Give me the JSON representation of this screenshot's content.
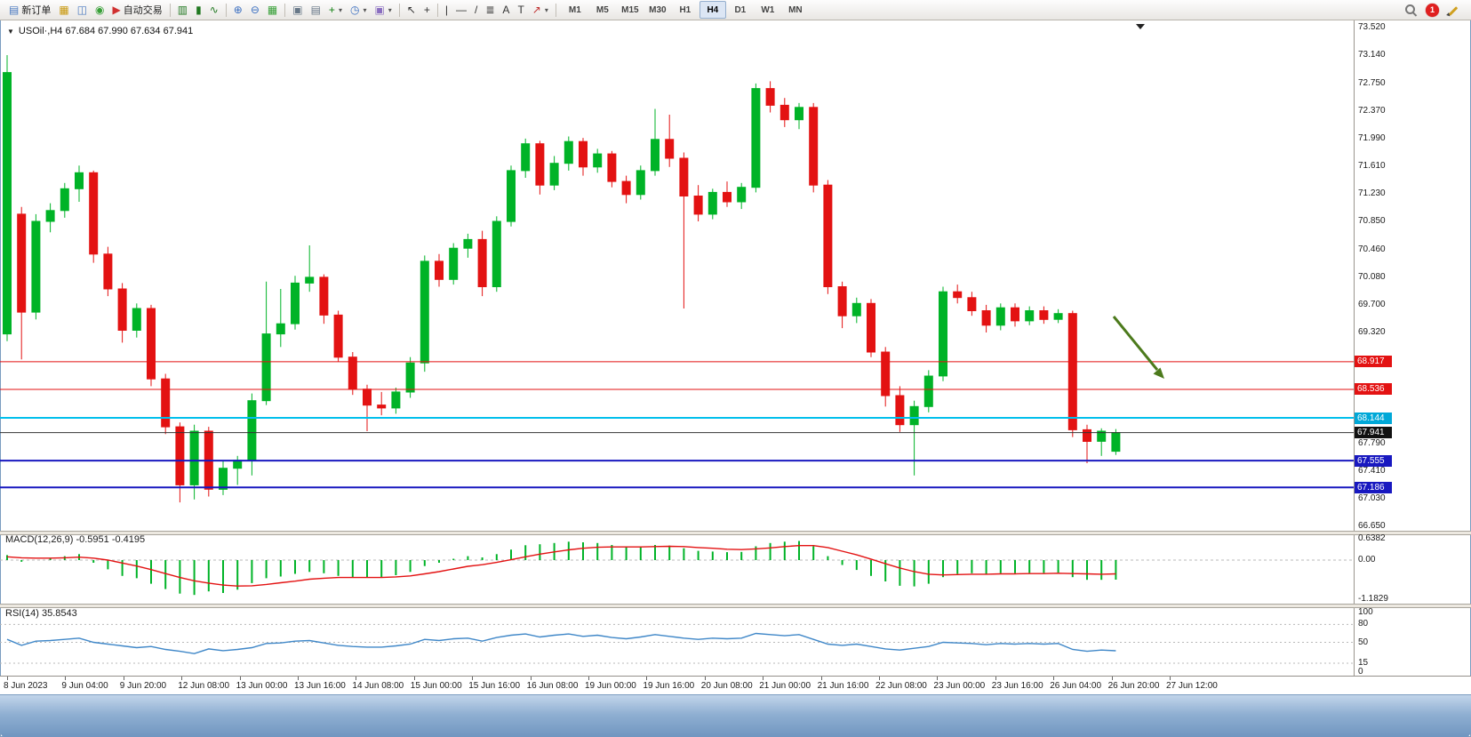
{
  "toolbar": {
    "notification_count": "1",
    "active_timeframe": "H4",
    "timeframes": [
      "M1",
      "M5",
      "M15",
      "M30",
      "H1",
      "H4",
      "D1",
      "W1",
      "MN"
    ],
    "items": [
      {
        "name": "new-order-button",
        "icon": "new-order-icon",
        "glyph": "▤",
        "color": "#4878c0",
        "label": "新订单"
      },
      {
        "name": "charts-button",
        "icon": "chart-window-icon",
        "glyph": "▦",
        "color": "#c8980e"
      },
      {
        "name": "profiles-button",
        "icon": "profiles-icon",
        "glyph": "◫",
        "color": "#4878c0"
      },
      {
        "name": "refresh-button",
        "icon": "refresh-icon",
        "glyph": "◉",
        "color": "#38a038"
      },
      {
        "name": "autotrading-button",
        "icon": "autotrading-icon",
        "glyph": "▶",
        "color": "#d03030",
        "label": "自动交易"
      },
      {
        "sep": true
      },
      {
        "name": "bar-chart-button",
        "icon": "ohlc-bars-icon",
        "glyph": "▥",
        "color": "#207820"
      },
      {
        "name": "candlestick-chart-button",
        "icon": "candlestick-icon",
        "glyph": "▮",
        "color": "#207820"
      },
      {
        "name": "line-chart-button",
        "icon": "line-chart-icon",
        "glyph": "∿",
        "color": "#207820"
      },
      {
        "sep": true
      },
      {
        "name": "zoom-in-button",
        "icon": "zoom-in-icon",
        "glyph": "⊕",
        "color": "#3a6ec0"
      },
      {
        "name": "zoom-out-button",
        "icon": "zoom-out-icon",
        "glyph": "⊖",
        "color": "#3a6ec0"
      },
      {
        "name": "tile-windows-button",
        "icon": "tile-windows-icon",
        "glyph": "▦",
        "color": "#38a038"
      },
      {
        "sep": true
      },
      {
        "name": "auto-arrange-button",
        "icon": "arrange-icon",
        "glyph": "▣",
        "color": "#687888"
      },
      {
        "name": "chart-shift-button",
        "icon": "chart-shift-icon",
        "glyph": "▤",
        "color": "#687888"
      },
      {
        "name": "indicators-button",
        "icon": "add-indicator-icon",
        "glyph": "+",
        "color": "#108010",
        "dropdown": true
      },
      {
        "name": "periods-button",
        "icon": "clock-icon",
        "glyph": "◷",
        "color": "#3a6ec0",
        "dropdown": true
      },
      {
        "name": "templates-button",
        "icon": "template-icon",
        "glyph": "▣",
        "color": "#8a6ec0",
        "dropdown": true
      },
      {
        "sep": true
      },
      {
        "name": "cursor-button",
        "icon": "cursor-icon",
        "glyph": "↖",
        "color": "#333333"
      },
      {
        "name": "crosshair-button",
        "icon": "crosshair-icon",
        "glyph": "+",
        "color": "#333333"
      },
      {
        "sep": true
      },
      {
        "name": "vertical-line-button",
        "icon": "vertical-line-icon",
        "glyph": "|",
        "color": "#333333"
      },
      {
        "name": "horizontal-line-button",
        "icon": "horizontal-line-icon",
        "glyph": "—",
        "color": "#333333"
      },
      {
        "name": "trendline-button",
        "icon": "trendline-icon",
        "glyph": "/",
        "color": "#333333"
      },
      {
        "name": "fibonacci-button",
        "icon": "fibonacci-icon",
        "glyph": "≣",
        "color": "#333333"
      },
      {
        "name": "text-button",
        "icon": "text-icon",
        "glyph": "A",
        "color": "#333333"
      },
      {
        "name": "text-label-button",
        "icon": "text-label-icon",
        "glyph": "T",
        "color": "#333333"
      },
      {
        "name": "shapes-button",
        "icon": "arrow-shapes-icon",
        "glyph": "↗",
        "color": "#c03030",
        "dropdown": true
      },
      {
        "sep": true
      }
    ]
  },
  "chart_header": {
    "title": "USOil·,H4  67.684 67.990 67.634 67.941"
  },
  "panels": {
    "macd_label": "MACD(12,26,9) -0.5951 -0.4195",
    "rsi_label": "RSI(14) 35.8543"
  },
  "colors": {
    "up": "#00b327",
    "down": "#e31212",
    "macd_hist": "#00b327",
    "macd_signal": "#e31212",
    "rsi_line": "#3f87c8",
    "arrow": "#4c7a1c",
    "grid_dash": "#b8b8b8"
  },
  "chart_data": {
    "type": "candlestick",
    "symbol": "USOil",
    "timeframe": "H4",
    "last_ohlc": {
      "open": 67.684,
      "high": 67.99,
      "low": 67.634,
      "close": 67.941
    },
    "y_range": [
      66.65,
      73.52
    ],
    "price_axis_ticks": [
      73.52,
      73.14,
      72.75,
      72.37,
      71.99,
      71.61,
      71.23,
      70.85,
      70.46,
      70.08,
      69.7,
      69.32,
      67.79,
      67.41,
      67.03,
      66.65
    ],
    "price_tags": [
      {
        "price": 68.917,
        "bg": "#e31212"
      },
      {
        "price": 68.536,
        "bg": "#e31212"
      },
      {
        "price": 68.144,
        "bg": "#00a8d8"
      },
      {
        "price": 67.941,
        "bg": "#111111"
      },
      {
        "price": 67.555,
        "bg": "#1818c0"
      },
      {
        "price": 67.186,
        "bg": "#1818c0"
      }
    ],
    "horizontal_lines": [
      {
        "price": 68.917,
        "color": "#e31212",
        "width": 1
      },
      {
        "price": 68.536,
        "color": "#e31212",
        "width": 1
      },
      {
        "price": 68.144,
        "color": "#00bfec",
        "width": 2
      },
      {
        "price": 67.555,
        "color": "#1818c0",
        "width": 2
      },
      {
        "price": 67.186,
        "color": "#1818c0",
        "width": 2
      }
    ],
    "current_price_line": {
      "price": 67.941,
      "color": "#333333"
    },
    "annotation_arrow": {
      "color": "#4c7a1c"
    },
    "time_labels": [
      "8 Jun 2023",
      "9 Jun 04:00",
      "9 Jun 20:00",
      "12 Jun 08:00",
      "13 Jun 00:00",
      "13 Jun 16:00",
      "14 Jun 08:00",
      "15 Jun 00:00",
      "15 Jun 16:00",
      "16 Jun 08:00",
      "19 Jun 00:00",
      "19 Jun 16:00",
      "20 Jun 08:00",
      "21 Jun 00:00",
      "21 Jun 16:00",
      "22 Jun 08:00",
      "23 Jun 00:00",
      "23 Jun 16:00",
      "26 Jun 04:00",
      "26 Jun 20:00",
      "27 Jun 12:00"
    ],
    "candles": [
      [
        69.3,
        73.14,
        69.2,
        72.9
      ],
      [
        70.95,
        71.05,
        68.95,
        69.6
      ],
      [
        69.6,
        70.95,
        69.5,
        70.85
      ],
      [
        70.85,
        71.1,
        70.7,
        71.0
      ],
      [
        71.0,
        71.38,
        70.9,
        71.3
      ],
      [
        71.3,
        71.62,
        71.12,
        71.52
      ],
      [
        71.52,
        71.55,
        70.28,
        70.4
      ],
      [
        70.4,
        70.5,
        69.82,
        69.92
      ],
      [
        69.92,
        70.0,
        69.18,
        69.35
      ],
      [
        69.35,
        69.72,
        69.25,
        69.65
      ],
      [
        69.65,
        69.7,
        68.58,
        68.68
      ],
      [
        68.68,
        68.75,
        67.92,
        68.02
      ],
      [
        68.02,
        68.08,
        66.98,
        67.22
      ],
      [
        67.22,
        68.05,
        67.02,
        67.96
      ],
      [
        67.96,
        68.02,
        67.06,
        67.16
      ],
      [
        67.16,
        67.55,
        67.08,
        67.45
      ],
      [
        67.45,
        67.62,
        67.22,
        67.56
      ],
      [
        67.56,
        68.48,
        67.35,
        68.38
      ],
      [
        68.38,
        70.02,
        68.32,
        69.3
      ],
      [
        69.3,
        69.92,
        69.12,
        69.44
      ],
      [
        69.44,
        70.1,
        69.36,
        70.0
      ],
      [
        70.0,
        70.52,
        69.88,
        70.08
      ],
      [
        70.08,
        70.12,
        69.44,
        69.56
      ],
      [
        69.56,
        69.62,
        68.92,
        68.98
      ],
      [
        68.98,
        69.05,
        68.46,
        68.54
      ],
      [
        68.54,
        68.6,
        67.96,
        68.32
      ],
      [
        68.32,
        68.5,
        68.18,
        68.28
      ],
      [
        68.28,
        68.56,
        68.2,
        68.5
      ],
      [
        68.5,
        68.98,
        68.42,
        68.9
      ],
      [
        68.9,
        70.38,
        68.78,
        70.3
      ],
      [
        70.3,
        70.4,
        69.95,
        70.05
      ],
      [
        70.05,
        70.55,
        69.98,
        70.48
      ],
      [
        70.48,
        70.68,
        70.35,
        70.6
      ],
      [
        70.6,
        70.72,
        69.82,
        69.95
      ],
      [
        69.95,
        70.92,
        69.88,
        70.85
      ],
      [
        70.85,
        71.62,
        70.78,
        71.55
      ],
      [
        71.55,
        71.99,
        71.45,
        71.92
      ],
      [
        71.92,
        71.96,
        71.22,
        71.35
      ],
      [
        71.35,
        71.75,
        71.28,
        71.65
      ],
      [
        71.65,
        72.02,
        71.55,
        71.95
      ],
      [
        71.95,
        72.0,
        71.48,
        71.6
      ],
      [
        71.6,
        71.85,
        71.52,
        71.78
      ],
      [
        71.78,
        71.82,
        71.32,
        71.4
      ],
      [
        71.4,
        71.48,
        71.1,
        71.22
      ],
      [
        71.22,
        71.62,
        71.15,
        71.55
      ],
      [
        71.55,
        72.4,
        71.48,
        71.98
      ],
      [
        71.98,
        72.32,
        71.6,
        71.72
      ],
      [
        71.72,
        71.8,
        69.65,
        71.2
      ],
      [
        71.2,
        71.35,
        70.85,
        70.95
      ],
      [
        70.95,
        71.3,
        70.88,
        71.25
      ],
      [
        71.25,
        71.4,
        71.05,
        71.12
      ],
      [
        71.12,
        71.38,
        71.02,
        71.32
      ],
      [
        71.32,
        72.75,
        71.25,
        72.68
      ],
      [
        72.68,
        72.78,
        72.35,
        72.45
      ],
      [
        72.45,
        72.55,
        72.15,
        72.25
      ],
      [
        72.25,
        72.48,
        72.12,
        72.42
      ],
      [
        72.42,
        72.48,
        71.25,
        71.35
      ],
      [
        71.35,
        71.42,
        69.85,
        69.95
      ],
      [
        69.95,
        70.02,
        69.38,
        69.55
      ],
      [
        69.55,
        69.8,
        69.45,
        69.72
      ],
      [
        69.72,
        69.78,
        68.98,
        69.05
      ],
      [
        69.05,
        69.12,
        68.3,
        68.45
      ],
      [
        68.45,
        68.58,
        67.95,
        68.05
      ],
      [
        68.05,
        68.38,
        67.35,
        68.3
      ],
      [
        68.3,
        68.8,
        68.22,
        68.72
      ],
      [
        68.72,
        69.95,
        68.65,
        69.88
      ],
      [
        69.88,
        69.98,
        69.72,
        69.8
      ],
      [
        69.8,
        69.88,
        69.55,
        69.62
      ],
      [
        69.62,
        69.7,
        69.32,
        69.42
      ],
      [
        69.42,
        69.72,
        69.35,
        69.66
      ],
      [
        69.66,
        69.72,
        69.4,
        69.48
      ],
      [
        69.48,
        69.68,
        69.42,
        69.62
      ],
      [
        69.62,
        69.68,
        69.44,
        69.5
      ],
      [
        69.5,
        69.64,
        69.45,
        69.58
      ],
      [
        69.58,
        69.62,
        67.88,
        67.98
      ],
      [
        67.98,
        68.05,
        67.52,
        67.82
      ],
      [
        67.82,
        68.0,
        67.62,
        67.96
      ],
      [
        67.684,
        67.99,
        67.634,
        67.941
      ]
    ],
    "macd": {
      "params": "12,26,9",
      "value": -0.5951,
      "signal_value": -0.4195,
      "axis_ticks": [
        "0.6382",
        "0.00",
        "-1.1829"
      ],
      "histogram": [
        0.15,
        -0.05,
        0.0,
        0.06,
        0.12,
        0.18,
        -0.08,
        -0.28,
        -0.48,
        -0.55,
        -0.72,
        -0.88,
        -1.02,
        -1.06,
        -0.95,
        -1.0,
        -0.9,
        -0.7,
        -0.55,
        -0.5,
        -0.42,
        -0.36,
        -0.4,
        -0.48,
        -0.52,
        -0.54,
        -0.52,
        -0.46,
        -0.36,
        -0.18,
        -0.08,
        0.04,
        0.12,
        0.08,
        0.18,
        0.32,
        0.45,
        0.48,
        0.52,
        0.56,
        0.54,
        0.52,
        0.46,
        0.4,
        0.4,
        0.46,
        0.44,
        0.36,
        0.28,
        0.26,
        0.24,
        0.25,
        0.42,
        0.52,
        0.56,
        0.58,
        0.42,
        0.12,
        -0.15,
        -0.3,
        -0.48,
        -0.65,
        -0.78,
        -0.8,
        -0.72,
        -0.52,
        -0.42,
        -0.4,
        -0.42,
        -0.4,
        -0.4,
        -0.39,
        -0.39,
        -0.38,
        -0.52,
        -0.6,
        -0.6,
        -0.5951
      ],
      "signal": [
        0.1,
        0.07,
        0.06,
        0.06,
        0.07,
        0.09,
        0.06,
        0.0,
        -0.09,
        -0.18,
        -0.29,
        -0.41,
        -0.53,
        -0.63,
        -0.7,
        -0.76,
        -0.79,
        -0.78,
        -0.74,
        -0.69,
        -0.64,
        -0.58,
        -0.55,
        -0.53,
        -0.53,
        -0.53,
        -0.53,
        -0.51,
        -0.48,
        -0.42,
        -0.35,
        -0.27,
        -0.19,
        -0.14,
        -0.07,
        0.01,
        0.1,
        0.18,
        0.25,
        0.31,
        0.36,
        0.39,
        0.4,
        0.4,
        0.4,
        0.41,
        0.42,
        0.41,
        0.38,
        0.36,
        0.33,
        0.32,
        0.34,
        0.37,
        0.41,
        0.44,
        0.44,
        0.38,
        0.27,
        0.16,
        0.03,
        -0.11,
        -0.24,
        -0.35,
        -0.43,
        -0.45,
        -0.44,
        -0.43,
        -0.43,
        -0.42,
        -0.42,
        -0.41,
        -0.41,
        -0.4,
        -0.41,
        -0.42,
        -0.43,
        -0.4195
      ]
    },
    "rsi": {
      "period": 14,
      "value": 35.8543,
      "axis_ticks": [
        "100",
        "80",
        "50",
        "15",
        "0"
      ],
      "levels": [
        80,
        50,
        15
      ],
      "values": [
        55,
        45,
        52,
        53,
        55,
        57,
        50,
        47,
        44,
        41,
        43,
        38,
        35,
        31,
        39,
        36,
        38,
        41,
        48,
        49,
        52,
        53,
        49,
        45,
        43,
        42,
        42,
        44,
        47,
        55,
        53,
        56,
        57,
        52,
        58,
        62,
        64,
        59,
        62,
        64,
        60,
        62,
        58,
        56,
        59,
        63,
        60,
        57,
        55,
        57,
        56,
        57,
        65,
        63,
        61,
        63,
        55,
        47,
        45,
        47,
        43,
        39,
        37,
        40,
        43,
        50,
        49,
        48,
        46,
        48,
        47,
        48,
        47,
        48,
        38,
        35,
        37,
        35.8543
      ]
    }
  }
}
